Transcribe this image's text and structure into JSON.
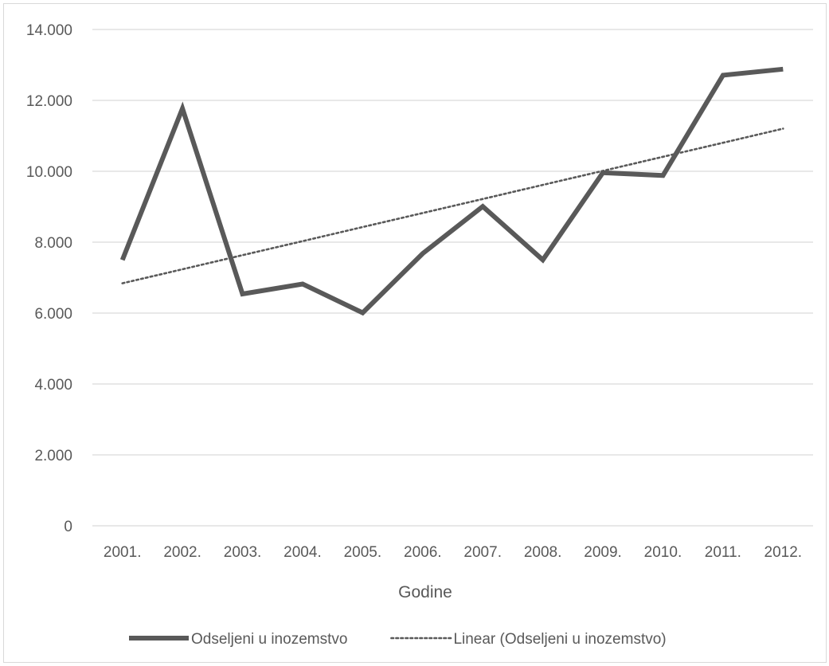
{
  "chart_data": {
    "type": "line",
    "title": "",
    "xlabel": "Godine",
    "ylabel": "",
    "categories": [
      "2001.",
      "2002.",
      "2003.",
      "2004.",
      "2005.",
      "2006.",
      "2007.",
      "2008.",
      "2009.",
      "2010.",
      "2011.",
      "2012."
    ],
    "series": [
      {
        "name": "Odseljeni u inozemstvo",
        "values": [
          7500,
          11770,
          6540,
          6820,
          6010,
          7680,
          9010,
          7500,
          9960,
          9880,
          12710,
          12880
        ],
        "color": "#595959",
        "style": "solid"
      },
      {
        "name": "Linear (Odseljeni u inozemstvo)",
        "values": [
          6840,
          7237,
          7633,
          8030,
          8426,
          8823,
          9219,
          9616,
          10012,
          10409,
          10805,
          11202
        ],
        "color": "#595959",
        "style": "dotted",
        "trendline": true
      }
    ],
    "ylim": [
      0,
      14000
    ],
    "yticks": [
      {
        "value": 0,
        "label": "0"
      },
      {
        "value": 2000,
        "label": "2.000"
      },
      {
        "value": 4000,
        "label": "4.000"
      },
      {
        "value": 6000,
        "label": "6.000"
      },
      {
        "value": 8000,
        "label": "8.000"
      },
      {
        "value": 10000,
        "label": "10.000"
      },
      {
        "value": 12000,
        "label": "12.000"
      },
      {
        "value": 14000,
        "label": "14.000"
      }
    ],
    "grid": true,
    "legend": "bottom",
    "gridColor": "#d9d9d9"
  }
}
